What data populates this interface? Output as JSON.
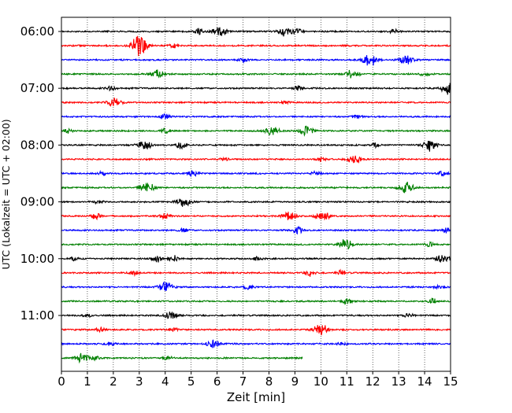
{
  "chart_data": {
    "type": "line",
    "title": "",
    "xlabel": "Zeit  [min]",
    "ylabel": "UTC (Lokalzeit = UTC + 02:00)",
    "xlim": [
      0,
      15
    ],
    "x_ticks": [
      "0",
      "1",
      "2",
      "3",
      "4",
      "5",
      "6",
      "7",
      "8",
      "9",
      "10",
      "11",
      "12",
      "13",
      "14",
      "15"
    ],
    "grid": "vertical dotted",
    "y_ticks": [
      {
        "label": "06:00",
        "row": 0
      },
      {
        "label": "07:00",
        "row": 4
      },
      {
        "label": "08:00",
        "row": 8
      },
      {
        "label": "09:00",
        "row": 12
      },
      {
        "label": "10:00",
        "row": 16
      },
      {
        "label": "11:00",
        "row": 20
      }
    ],
    "trace_colors": [
      "#000000",
      "#ff0000",
      "#0000ff",
      "#008000"
    ],
    "rows_minutes": 15,
    "traces": [
      {
        "start": "06:00",
        "end_min": 15,
        "color": "#000000",
        "events": [
          [
            5.3,
            5
          ],
          [
            6.1,
            6
          ],
          [
            8.6,
            6
          ],
          [
            9.1,
            4
          ],
          [
            12.8,
            3
          ]
        ]
      },
      {
        "start": "06:15",
        "end_min": 15,
        "color": "#ff0000",
        "events": [
          [
            2.95,
            18
          ],
          [
            3.2,
            4
          ],
          [
            4.3,
            3
          ]
        ]
      },
      {
        "start": "06:30",
        "end_min": 15,
        "color": "#0000ff",
        "events": [
          [
            7.0,
            3
          ],
          [
            11.9,
            9
          ],
          [
            13.3,
            6
          ]
        ]
      },
      {
        "start": "06:45",
        "end_min": 15,
        "color": "#008000",
        "events": [
          [
            3.7,
            6
          ],
          [
            11.2,
            6
          ],
          [
            14.0,
            3
          ]
        ]
      },
      {
        "start": "07:00",
        "end_min": 15,
        "color": "#000000",
        "events": [
          [
            1.9,
            3
          ],
          [
            9.1,
            3
          ],
          [
            14.9,
            8
          ]
        ]
      },
      {
        "start": "07:15",
        "end_min": 15,
        "color": "#ff0000",
        "events": [
          [
            2.05,
            6
          ],
          [
            8.6,
            2
          ]
        ]
      },
      {
        "start": "07:30",
        "end_min": 15,
        "color": "#0000ff",
        "events": [
          [
            4.0,
            4
          ],
          [
            11.4,
            3
          ]
        ]
      },
      {
        "start": "07:45",
        "end_min": 15,
        "color": "#008000",
        "events": [
          [
            0.25,
            3
          ],
          [
            4.0,
            3
          ],
          [
            8.1,
            6
          ],
          [
            9.45,
            7
          ]
        ]
      },
      {
        "start": "08:00",
        "end_min": 15,
        "color": "#000000",
        "events": [
          [
            3.2,
            6
          ],
          [
            4.6,
            5
          ],
          [
            12.1,
            3
          ],
          [
            14.2,
            8
          ]
        ]
      },
      {
        "start": "08:15",
        "end_min": 15,
        "color": "#ff0000",
        "events": [
          [
            6.3,
            2
          ],
          [
            10.0,
            3
          ],
          [
            11.3,
            6
          ]
        ]
      },
      {
        "start": "08:30",
        "end_min": 15,
        "color": "#0000ff",
        "events": [
          [
            1.6,
            3
          ],
          [
            5.1,
            5
          ],
          [
            9.8,
            3
          ],
          [
            14.7,
            4
          ]
        ]
      },
      {
        "start": "08:45",
        "end_min": 15,
        "color": "#008000",
        "events": [
          [
            3.3,
            8
          ],
          [
            13.3,
            8
          ]
        ]
      },
      {
        "start": "09:00",
        "end_min": 15,
        "color": "#000000",
        "events": [
          [
            1.4,
            3
          ],
          [
            4.7,
            7
          ]
        ]
      },
      {
        "start": "09:15",
        "end_min": 15,
        "color": "#ff0000",
        "events": [
          [
            1.35,
            5
          ],
          [
            4.0,
            4
          ],
          [
            8.8,
            6
          ],
          [
            9.9,
            4
          ],
          [
            10.2,
            4
          ]
        ]
      },
      {
        "start": "09:30",
        "end_min": 15,
        "color": "#0000ff",
        "events": [
          [
            4.7,
            4
          ],
          [
            9.1,
            5
          ],
          [
            14.9,
            5
          ]
        ]
      },
      {
        "start": "09:45",
        "end_min": 15,
        "color": "#008000",
        "events": [
          [
            10.95,
            7
          ],
          [
            14.2,
            3
          ]
        ]
      },
      {
        "start": "10:00",
        "end_min": 15,
        "color": "#000000",
        "events": [
          [
            0.5,
            3
          ],
          [
            3.7,
            5
          ],
          [
            4.3,
            5
          ],
          [
            7.6,
            3
          ],
          [
            14.7,
            6
          ]
        ]
      },
      {
        "start": "10:15",
        "end_min": 15,
        "color": "#ff0000",
        "events": [
          [
            2.8,
            3
          ],
          [
            9.6,
            5
          ],
          [
            10.8,
            3
          ]
        ]
      },
      {
        "start": "10:30",
        "end_min": 15,
        "color": "#0000ff",
        "events": [
          [
            4.0,
            7
          ],
          [
            7.2,
            4
          ],
          [
            14.5,
            2
          ]
        ]
      },
      {
        "start": "10:45",
        "end_min": 15,
        "color": "#008000",
        "events": [
          [
            11.0,
            4
          ],
          [
            14.3,
            4
          ]
        ]
      },
      {
        "start": "11:00",
        "end_min": 15,
        "color": "#000000",
        "events": [
          [
            1.0,
            3
          ],
          [
            4.2,
            6
          ],
          [
            13.4,
            4
          ]
        ]
      },
      {
        "start": "11:15",
        "end_min": 15,
        "color": "#ff0000",
        "events": [
          [
            1.5,
            4
          ],
          [
            4.3,
            3
          ],
          [
            10.0,
            8
          ]
        ]
      },
      {
        "start": "11:30",
        "end_min": 15,
        "color": "#0000ff",
        "events": [
          [
            1.9,
            3
          ],
          [
            5.85,
            6
          ],
          [
            10.8,
            2
          ]
        ]
      },
      {
        "start": "11:45",
        "end_min": 9.3,
        "color": "#008000",
        "events": [
          [
            0.8,
            6
          ],
          [
            1.3,
            3
          ],
          [
            4.1,
            3
          ]
        ]
      }
    ]
  }
}
